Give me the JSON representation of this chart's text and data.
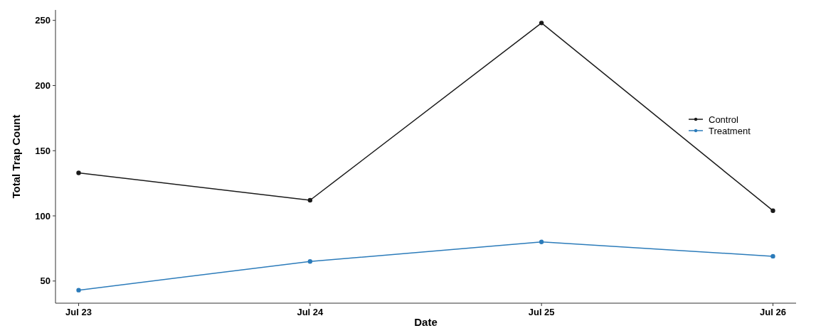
{
  "chart_data": {
    "type": "line",
    "xlabel": "Date",
    "ylabel": "Total Trap Count",
    "categories": [
      "Jul 23",
      "Jul 24",
      "Jul 25",
      "Jul 26"
    ],
    "series": [
      {
        "name": "Control",
        "color": "#1a1a1a",
        "values": [
          133,
          112,
          248,
          104
        ]
      },
      {
        "name": "Treatment",
        "color": "#2b7bba",
        "values": [
          43,
          65,
          80,
          69
        ]
      }
    ],
    "ylim": [
      33,
      258
    ],
    "yticks": [
      50,
      100,
      150,
      200,
      250
    ],
    "grid": false,
    "legend": "right",
    "marker": "circle",
    "line_style": "solid"
  }
}
